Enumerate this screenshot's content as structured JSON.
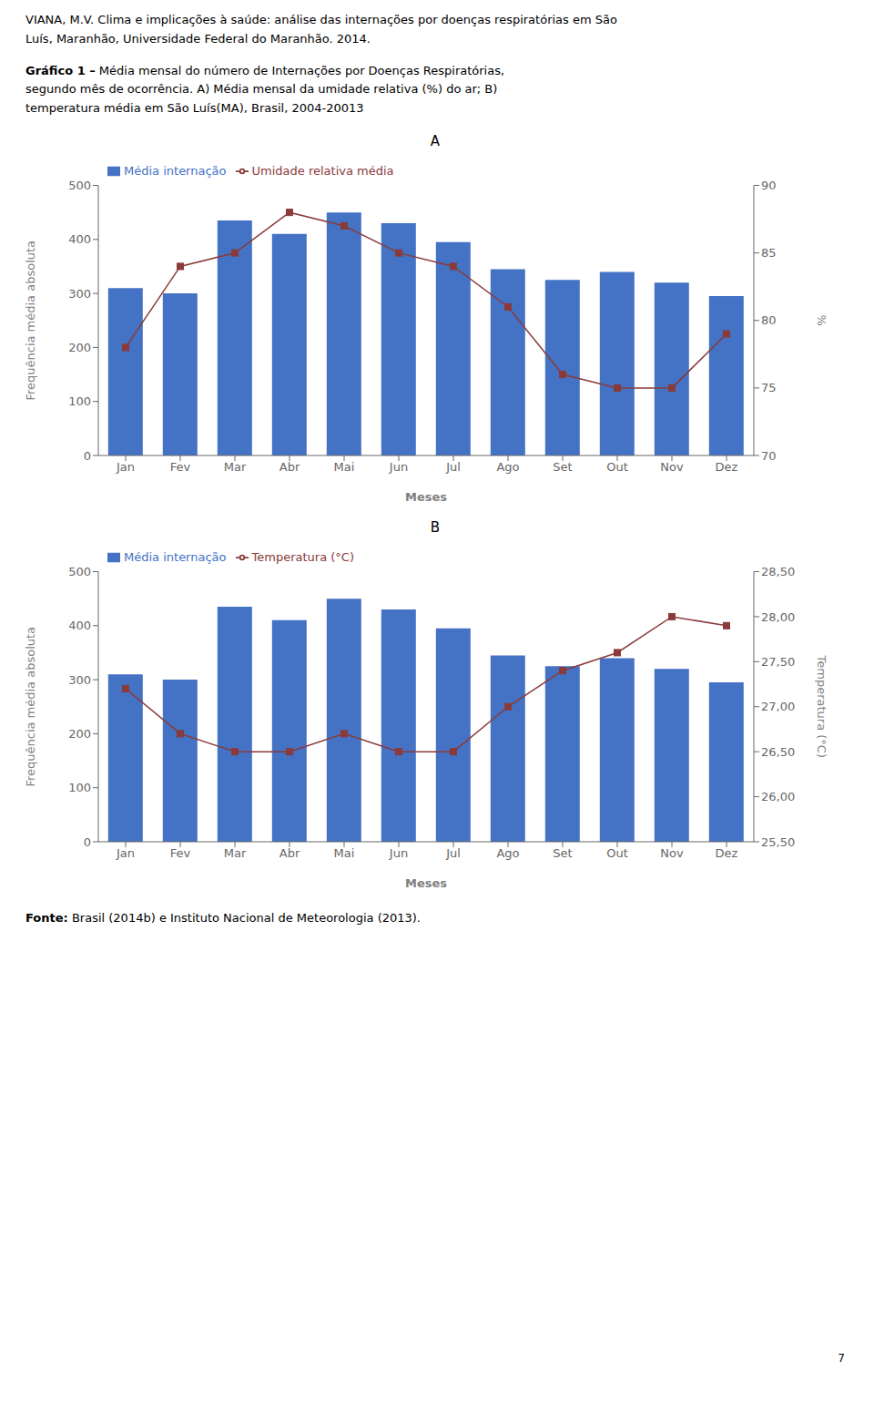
{
  "header": [
    "VIANA, M.V. Clima e implicações à saúde: análise das internações por doenças respiratórias em São",
    "Luís, Maranhão, Universidade Federal do Maranhão. 2014."
  ],
  "caption": [
    "Gráfico 1 –",
    " Média mensal do número de Internações por Doenças Respiratórias,\nsegundo mês de ocorrência. A) Média mensal da umidade relativa (%) do ar; B)\ntemperatura média em São Luís(MA), Brasil, 2004-20013"
  ],
  "source": [
    "Fonte:",
    " Brasil (2014b) e Instituto Nacional de Meteorologia (2013)."
  ],
  "page_number": "7",
  "chart_data": [
    {
      "type": "bar",
      "title": "A",
      "categories": [
        "Jan",
        "Fev",
        "Mar",
        "Abr",
        "Mai",
        "Jun",
        "Jul",
        "Ago",
        "Set",
        "Out",
        "Nov",
        "Dez"
      ],
      "series": [
        {
          "name": "Média internação",
          "type": "bar",
          "color": "#4472C4",
          "values": [
            310,
            300,
            435,
            410,
            450,
            430,
            395,
            345,
            325,
            340,
            320,
            295
          ]
        },
        {
          "name": "Umidade relativa média",
          "type": "line",
          "color": "#8B3A3A",
          "marker": "square",
          "axis": "y2",
          "values": [
            78,
            84,
            85,
            88,
            87,
            85,
            84,
            81,
            76,
            75,
            75,
            79
          ]
        }
      ],
      "xlabel": "Meses",
      "ylabel": "Frequência média absoluta",
      "y2label": "%",
      "ylim": [
        0,
        500
      ],
      "yticks": [
        0,
        100,
        200,
        300,
        400,
        500
      ],
      "y2lim": [
        70,
        90
      ],
      "y2ticks": [
        70,
        75,
        80,
        85,
        90
      ],
      "legend": "upper left",
      "grid": false
    },
    {
      "type": "bar",
      "title": "B",
      "categories": [
        "Jan",
        "Fev",
        "Mar",
        "Abr",
        "Mai",
        "Jun",
        "Jul",
        "Ago",
        "Set",
        "Out",
        "Nov",
        "Dez"
      ],
      "series": [
        {
          "name": "Média internação",
          "type": "bar",
          "color": "#4472C4",
          "values": [
            310,
            300,
            435,
            410,
            450,
            430,
            395,
            345,
            325,
            340,
            320,
            295
          ]
        },
        {
          "name": "Temperatura (°C)",
          "type": "line",
          "color": "#8B3A3A",
          "marker": "square",
          "axis": "y2",
          "values": [
            27.2,
            26.7,
            26.5,
            26.5,
            26.7,
            26.5,
            26.5,
            27.0,
            27.4,
            27.6,
            28.0,
            27.9
          ]
        }
      ],
      "xlabel": "Meses",
      "ylabel": "Frequência média absoluta",
      "y2label": "Temperatura (°C)",
      "ylim": [
        0,
        500
      ],
      "yticks": [
        0,
        100,
        200,
        300,
        400,
        500
      ],
      "y2lim": [
        25.5,
        28.5
      ],
      "y2ticks": [
        {
          "value": 25.5,
          "label": "25,50"
        },
        {
          "value": 26.0,
          "label": "26,00"
        },
        {
          "value": 26.5,
          "label": "26,50"
        },
        {
          "value": 27.0,
          "label": "27,00"
        },
        {
          "value": 27.5,
          "label": "27,50"
        },
        {
          "value": 28.0,
          "label": "28,00"
        },
        {
          "value": 28.5,
          "label": "28,50"
        }
      ],
      "legend": "upper left",
      "grid": false
    }
  ]
}
